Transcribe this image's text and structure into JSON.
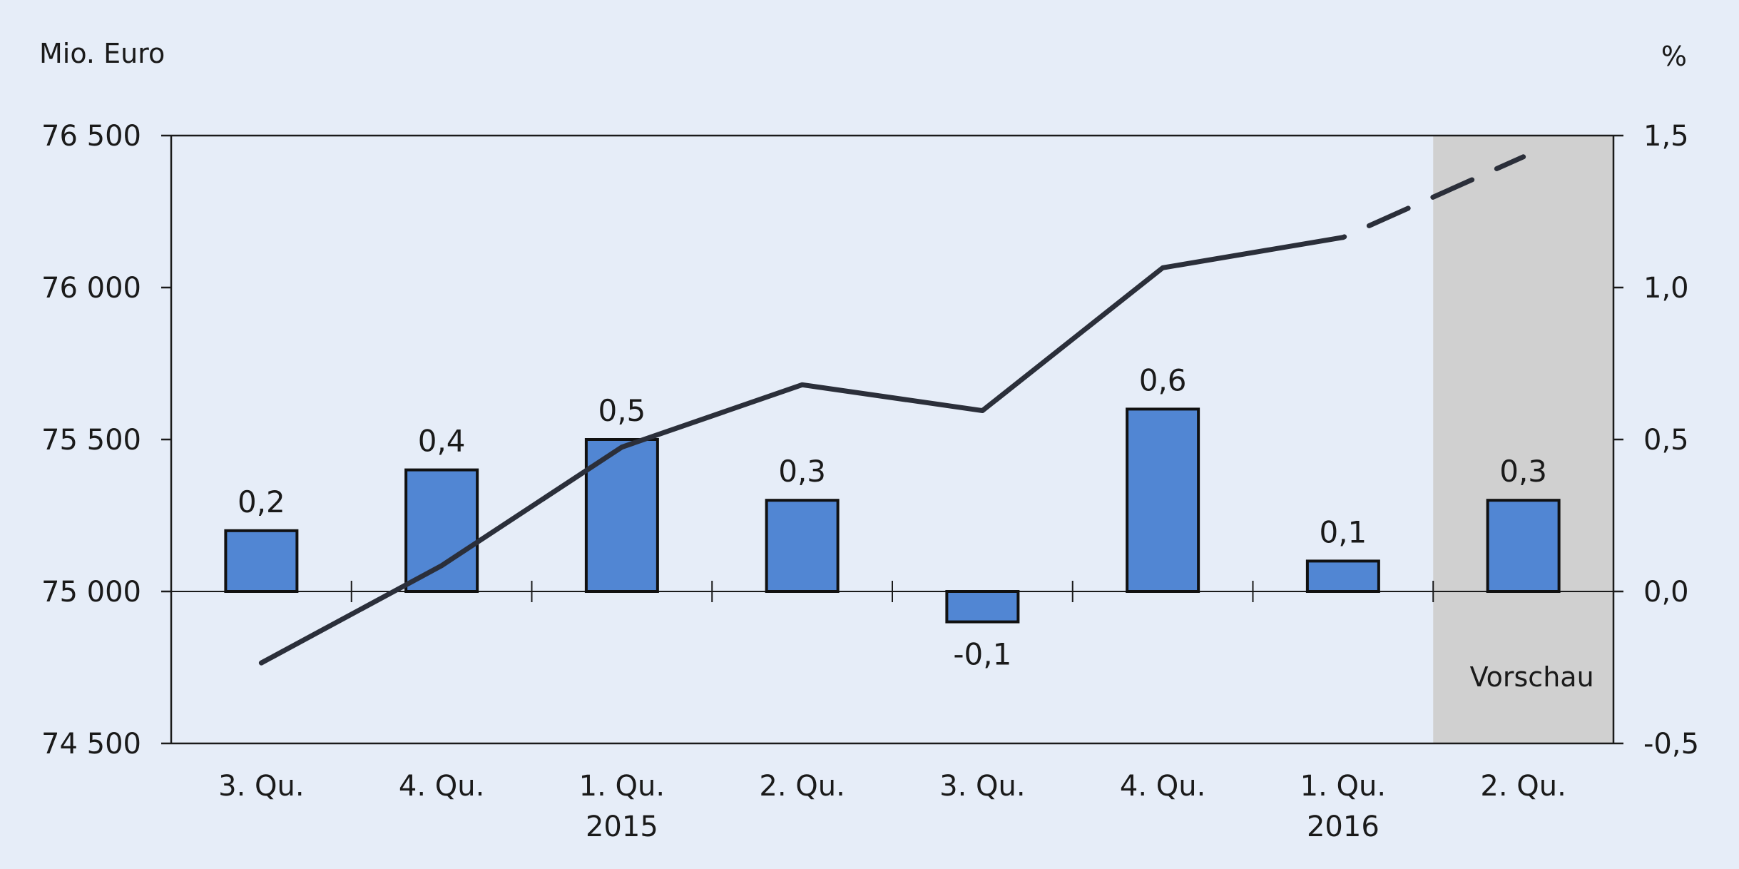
{
  "chart_data": {
    "type": "bar+line",
    "left_unit": "Mio. Euro",
    "right_unit": "%",
    "left_axis": {
      "ylim": [
        74500,
        76500
      ],
      "ticks": [
        76500,
        76000,
        75500,
        75000,
        74500
      ],
      "tick_labels": [
        "76 500",
        "76 000",
        "75 500",
        "75 000",
        "74 500"
      ]
    },
    "right_axis": {
      "ylim": [
        -0.5,
        1.5
      ],
      "ticks": [
        1.5,
        1.0,
        0.5,
        0.0,
        -0.5
      ],
      "tick_labels": [
        "1,5",
        "1,0",
        "0,5",
        "0,0",
        "-0,5"
      ]
    },
    "categories": [
      "3. Qu.",
      "4. Qu.",
      "1. Qu.",
      "2. Qu.",
      "3. Qu.",
      "4. Qu.",
      "1. Qu.",
      "2. Qu."
    ],
    "year_labels": [
      "",
      "",
      "2015",
      "",
      "",
      "",
      "2016",
      ""
    ],
    "bars": {
      "axis": "right",
      "values": [
        0.2,
        0.4,
        0.5,
        0.3,
        -0.1,
        0.6,
        0.1,
        0.3
      ],
      "labels": [
        "0,2",
        "0,4",
        "0,5",
        "0,3",
        "-0,1",
        "0,6",
        "0,1",
        "0,3"
      ],
      "color": "#5186d3"
    },
    "line": {
      "axis": "left",
      "values": [
        74765,
        75085,
        75475,
        75680,
        75595,
        76065,
        76165,
        76430
      ],
      "dashed_from_index": 6,
      "color": "#2b2f3a"
    },
    "preview": {
      "label": "Vorschau",
      "category_index": 7,
      "color": "#d0d0d0"
    },
    "grid": false
  }
}
